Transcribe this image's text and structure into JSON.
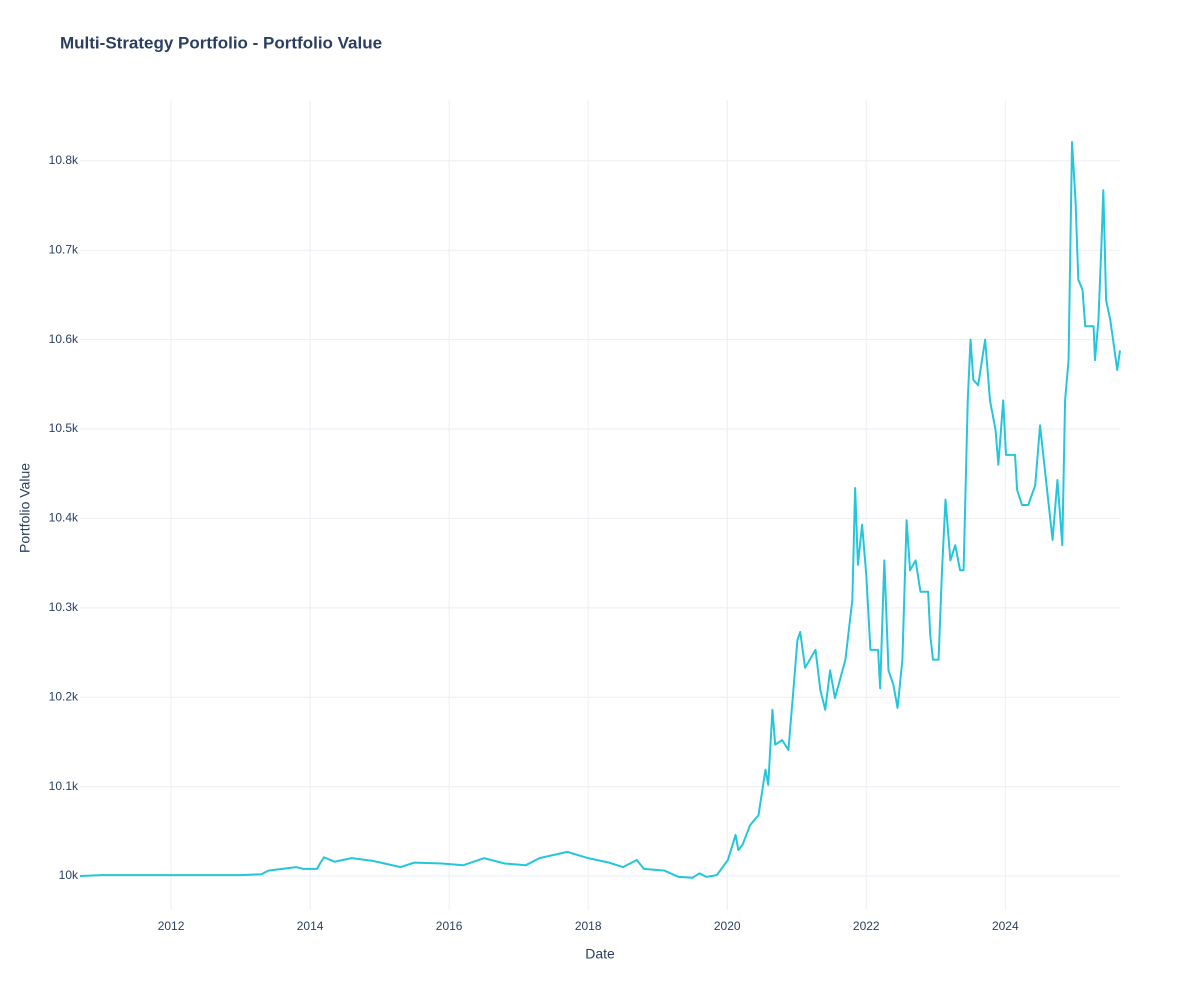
{
  "chart_data": {
    "type": "line",
    "title": "Multi-Strategy Portfolio - Portfolio Value",
    "x_label": "Date",
    "y_label": "Portfolio Value",
    "xlim": [
      2010.69,
      2025.65
    ],
    "xticks": [
      2012,
      2014,
      2016,
      2018,
      2020,
      2022,
      2024
    ],
    "ylim": [
      9962,
      10868
    ],
    "yticks": [
      {
        "value": 10000,
        "label": "10k"
      },
      {
        "value": 10100,
        "label": "10.1k"
      },
      {
        "value": 10200,
        "label": "10.2k"
      },
      {
        "value": 10300,
        "label": "10.3k"
      },
      {
        "value": 10400,
        "label": "10.4k"
      },
      {
        "value": 10500,
        "label": "10.5k"
      },
      {
        "value": 10600,
        "label": "10.6k"
      },
      {
        "value": 10700,
        "label": "10.7k"
      },
      {
        "value": 10800,
        "label": "10.8k"
      }
    ],
    "grid": true,
    "series": [
      {
        "name": "Portfolio Value",
        "color": "#26c6da",
        "x": [
          2010.69,
          2011.0,
          2013.0,
          2013.3,
          2013.4,
          2013.8,
          2013.9,
          2014.1,
          2014.15,
          2014.2,
          2014.35,
          2014.6,
          2014.9,
          2015.3,
          2015.5,
          2015.9,
          2016.2,
          2016.5,
          2016.8,
          2017.1,
          2017.3,
          2017.7,
          2018.0,
          2018.3,
          2018.5,
          2018.7,
          2018.8,
          2019.1,
          2019.3,
          2019.5,
          2019.6,
          2019.7,
          2019.85,
          2020.01,
          2020.12,
          2020.16,
          2020.22,
          2020.33,
          2020.45,
          2020.55,
          2020.59,
          2020.65,
          2020.69,
          2020.79,
          2020.88,
          2020.94,
          2021.01,
          2021.05,
          2021.12,
          2021.27,
          2021.34,
          2021.41,
          2021.48,
          2021.55,
          2021.7,
          2021.8,
          2021.84,
          2021.88,
          2021.94,
          2022.0,
          2022.06,
          2022.17,
          2022.2,
          2022.26,
          2022.32,
          2022.39,
          2022.45,
          2022.52,
          2022.58,
          2022.63,
          2022.71,
          2022.78,
          2022.89,
          2022.92,
          2022.96,
          2023.04,
          2023.09,
          2023.14,
          2023.21,
          2023.28,
          2023.35,
          2023.4,
          2023.46,
          2023.5,
          2023.54,
          2023.61,
          2023.71,
          2023.78,
          2023.86,
          2023.9,
          2023.97,
          2024.01,
          2024.14,
          2024.17,
          2024.24,
          2024.33,
          2024.43,
          2024.5,
          2024.57,
          2024.68,
          2024.75,
          2024.82,
          2024.86,
          2024.91,
          2024.96,
          2025.01,
          2025.05,
          2025.11,
          2025.15,
          2025.27,
          2025.29,
          2025.34,
          2025.38,
          2025.41,
          2025.45,
          2025.51,
          2025.55,
          2025.61,
          2025.65
        ],
        "values": [
          10000,
          10001,
          10001,
          10002,
          10006,
          10010,
          10008,
          10008,
          10015,
          10021,
          10016,
          10020,
          10017,
          10010,
          10015,
          10014,
          10012,
          10020,
          10014,
          10012,
          10020,
          10027,
          10020,
          10015,
          10010,
          10018,
          10008,
          10006,
          9999,
          9998,
          10003,
          9999,
          10001,
          10018,
          10046,
          10029,
          10035,
          10057,
          10068,
          10119,
          10102,
          10186,
          10147,
          10152,
          10141,
          10197,
          10264,
          10273,
          10233,
          10253,
          10208,
          10186,
          10230,
          10199,
          10242,
          10309,
          10434,
          10348,
          10393,
          10337,
          10253,
          10253,
          10210,
          10353,
          10230,
          10214,
          10188,
          10242,
          10398,
          10342,
          10353,
          10318,
          10318,
          10270,
          10242,
          10242,
          10342,
          10421,
          10353,
          10370,
          10342,
          10342,
          10532,
          10600,
          10555,
          10549,
          10600,
          10532,
          10499,
          10460,
          10532,
          10471,
          10471,
          10432,
          10415,
          10415,
          10437,
          10504,
          10454,
          10376,
          10443,
          10370,
          10532,
          10577,
          10821,
          10756,
          10667,
          10656,
          10615,
          10615,
          10577,
          10622,
          10700,
          10767,
          10644,
          10622,
          10600,
          10566,
          10588
        ]
      }
    ]
  }
}
